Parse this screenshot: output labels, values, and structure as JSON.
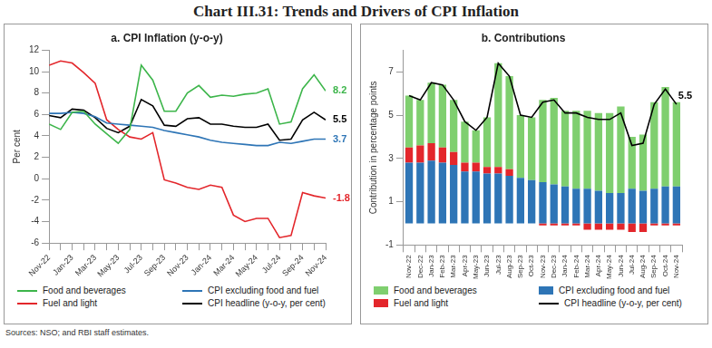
{
  "title": "Chart III.31: Trends and Drivers of CPI Inflation",
  "source": "Sources: NSO; and RBI staff estimates.",
  "chart_data": [
    {
      "type": "line",
      "title": "a. CPI Inflation (y-o-y)",
      "y_label": "Per cent",
      "categories": [
        "Nov-22",
        null,
        "Jan-23",
        null,
        "Mar-23",
        null,
        "May-23",
        null,
        "Jul-23",
        null,
        "Sep-23",
        null,
        "Nov-23",
        null,
        "Jan-24",
        null,
        "Mar-24",
        null,
        "May-24",
        null,
        "Jul-24",
        null,
        "Sep-24",
        null,
        "Nov-24"
      ],
      "series": [
        {
          "name": "Food and beverages",
          "color": "#3cb54a",
          "values": [
            5.1,
            4.6,
            6.2,
            6.3,
            5.1,
            4.2,
            3.3,
            4.6,
            10.6,
            9.2,
            6.3,
            6.3,
            8.0,
            8.7,
            7.6,
            7.8,
            7.7,
            7.9,
            8.0,
            8.4,
            5.1,
            5.3,
            8.4,
            9.7,
            8.2
          ]
        },
        {
          "name": "CPI excluding food and fuel",
          "color": "#2e75b6",
          "values": [
            6.1,
            6.1,
            6.2,
            6.1,
            5.8,
            5.2,
            5.1,
            5.0,
            4.9,
            4.8,
            4.5,
            4.3,
            4.1,
            3.9,
            3.6,
            3.4,
            3.3,
            3.2,
            3.1,
            3.1,
            3.4,
            3.3,
            3.5,
            3.7,
            3.7
          ]
        },
        {
          "name": "Fuel and light",
          "color": "#e3262b",
          "values": [
            10.6,
            11.0,
            10.8,
            9.9,
            8.9,
            5.5,
            4.6,
            3.9,
            3.7,
            4.3,
            -0.1,
            -0.4,
            -0.8,
            -1.0,
            -0.6,
            -0.8,
            -3.4,
            -4.0,
            -3.7,
            -3.7,
            -5.5,
            -5.3,
            -1.3,
            -1.6,
            -1.8
          ]
        },
        {
          "name": "CPI headline (y-o-y, per cent)",
          "color": "#000000",
          "values": [
            5.9,
            5.7,
            6.5,
            6.4,
            5.7,
            4.7,
            4.3,
            4.9,
            7.4,
            6.8,
            5.0,
            4.9,
            5.6,
            5.7,
            5.1,
            5.1,
            4.9,
            4.8,
            4.8,
            5.1,
            3.6,
            3.7,
            5.5,
            6.2,
            5.5
          ]
        }
      ],
      "ylim": [
        -6,
        12
      ],
      "yticks": [
        -6,
        -4,
        -2,
        0,
        2,
        4,
        6,
        8,
        10,
        12
      ],
      "grid": false,
      "annotations": [
        {
          "series": "Food and beverages",
          "text": "8.2"
        },
        {
          "series": "CPI headline (y-o-y, per cent)",
          "text": "5.5"
        },
        {
          "series": "CPI excluding food and fuel",
          "text": "3.7"
        },
        {
          "series": "Fuel and light",
          "text": "-1.8"
        }
      ]
    },
    {
      "type": "bar",
      "stacked": true,
      "title": "b. Contributions",
      "y_label": "Contribution in percentage points",
      "categories": [
        "Nov-22",
        "Dec-22",
        "Jan-23",
        "Feb-23",
        "Mar-23",
        "Apr-23",
        "May-23",
        "Jun-23",
        "Jul-23",
        "Aug-23",
        "Sep-23",
        "Oct-23",
        "Nov-23",
        "Dec-23",
        "Jan-24",
        "Feb-24",
        "Mar-24",
        "Apr-24",
        "May-24",
        "Jun-24",
        "Jul-24",
        "Aug-24",
        "Sep-24",
        "Oct-24",
        "Nov-24"
      ],
      "series": [
        {
          "name": "CPI excluding food and fuel",
          "color": "#2e75b6",
          "values": [
            2.8,
            2.8,
            2.9,
            2.8,
            2.7,
            2.4,
            2.4,
            2.3,
            2.3,
            2.2,
            2.1,
            2.0,
            1.9,
            1.8,
            1.7,
            1.6,
            1.6,
            1.5,
            1.4,
            1.4,
            1.6,
            1.5,
            1.6,
            1.7,
            1.7
          ]
        },
        {
          "name": "Fuel and light",
          "color": "#e3262b",
          "values": [
            0.7,
            0.8,
            0.8,
            0.7,
            0.6,
            0.4,
            0.4,
            0.3,
            0.3,
            0.3,
            0.0,
            0.0,
            -0.1,
            -0.1,
            -0.1,
            -0.1,
            -0.3,
            -0.3,
            -0.3,
            -0.3,
            -0.4,
            -0.4,
            -0.1,
            -0.1,
            -0.1
          ]
        },
        {
          "name": "Food and beverages",
          "color": "#7fcf6f",
          "values": [
            2.4,
            2.1,
            2.8,
            2.9,
            2.4,
            1.9,
            1.5,
            2.3,
            4.8,
            4.3,
            2.9,
            2.9,
            3.8,
            4.0,
            3.5,
            3.6,
            3.6,
            3.6,
            3.7,
            4.0,
            2.4,
            2.6,
            4.0,
            4.6,
            3.9
          ]
        },
        {
          "name": "CPI headline (y-o-y, per cent)",
          "type": "line",
          "color": "#000000",
          "values": [
            5.9,
            5.7,
            6.5,
            6.4,
            5.7,
            4.7,
            4.3,
            4.9,
            7.4,
            6.8,
            5.0,
            4.9,
            5.6,
            5.7,
            5.1,
            5.1,
            4.9,
            4.8,
            4.8,
            5.1,
            3.6,
            3.7,
            5.5,
            6.2,
            5.5
          ]
        }
      ],
      "ylim": [
        -1,
        8
      ],
      "yticks": [
        -1,
        1,
        3,
        5,
        7
      ],
      "grid": false,
      "annotations": [
        {
          "series": "CPI headline (y-o-y, per cent)",
          "text": "5.5"
        }
      ]
    }
  ]
}
